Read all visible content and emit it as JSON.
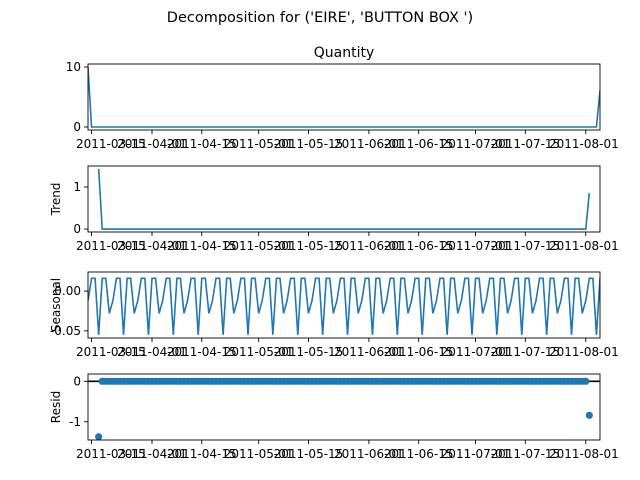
{
  "figure": {
    "suptitle": "Decomposition for ('EIRE', 'BUTTON BOX ')"
  },
  "colors": {
    "line": "#1f77b4",
    "axis": "#000000",
    "background": "#ffffff"
  },
  "chart_data": [
    {
      "type": "line",
      "title": "Quantity",
      "ylabel": "",
      "xlim": [
        "2011-03-14",
        "2011-08-05"
      ],
      "ylim": [
        -0.5,
        10.5
      ],
      "yticks": [
        "0",
        "10"
      ],
      "ytick_values": [
        0,
        10
      ],
      "xtick_labels": [
        "2011-03-15",
        "2011-04-01",
        "2011-04-15",
        "2011-05-01",
        "2011-05-15",
        "2011-06-01",
        "2011-06-15",
        "2011-07-01",
        "2011-07-15",
        "2011-08-01"
      ],
      "xtick_values": [
        "2011-03-15",
        "2011-04-01",
        "2011-04-15",
        "2011-05-01",
        "2011-05-15",
        "2011-06-01",
        "2011-06-15",
        "2011-07-01",
        "2011-07-15",
        "2011-08-01"
      ],
      "series": [
        {
          "x": [
            "2011-03-14",
            "2011-03-15",
            "2011-08-03",
            "2011-08-04",
            "2011-08-05"
          ],
          "y": [
            10,
            0,
            0,
            0,
            6
          ]
        }
      ]
    },
    {
      "type": "line",
      "title": "",
      "ylabel": "Trend",
      "xlim": [
        "2011-03-14",
        "2011-08-05"
      ],
      "ylim": [
        -0.07,
        1.5
      ],
      "yticks": [
        "0",
        "1"
      ],
      "ytick_values": [
        0,
        1
      ],
      "xtick_labels": [
        "2011-03-15",
        "2011-04-01",
        "2011-04-15",
        "2011-05-01",
        "2011-05-15",
        "2011-06-01",
        "2011-06-15",
        "2011-07-01",
        "2011-07-15",
        "2011-08-01"
      ],
      "xtick_values": [
        "2011-03-15",
        "2011-04-01",
        "2011-04-15",
        "2011-05-01",
        "2011-05-15",
        "2011-06-01",
        "2011-06-15",
        "2011-07-01",
        "2011-07-15",
        "2011-08-01"
      ],
      "series": [
        {
          "x": [
            "2011-03-17",
            "2011-03-18",
            "2011-08-01",
            "2011-08-02"
          ],
          "y": [
            1.43,
            0,
            0,
            0.86
          ]
        }
      ]
    },
    {
      "type": "line",
      "title": "",
      "ylabel": "Seasonal",
      "xlim": [
        "2011-03-14",
        "2011-08-05"
      ],
      "ylim": [
        -0.059,
        0.024
      ],
      "yticks": [
        "0.00",
        "-0.05"
      ],
      "ytick_values": [
        0,
        -0.05
      ],
      "xtick_labels": [
        "2011-03-15",
        "2011-04-01",
        "2011-04-15",
        "2011-05-01",
        "2011-05-15",
        "2011-06-01",
        "2011-06-15",
        "2011-07-01",
        "2011-07-15",
        "2011-08-01"
      ],
      "xtick_values": [
        "2011-03-15",
        "2011-04-01",
        "2011-04-15",
        "2011-05-01",
        "2011-05-15",
        "2011-06-01",
        "2011-06-15",
        "2011-07-01",
        "2011-07-15",
        "2011-08-01"
      ],
      "period_days": 7,
      "weekly_pattern": [
        -0.012,
        0.016,
        0.016,
        -0.055,
        0.016,
        0.016,
        -0.028
      ]
    },
    {
      "type": "scatter",
      "title": "",
      "ylabel": "Resid",
      "xlim": [
        "2011-03-14",
        "2011-08-05"
      ],
      "ylim": [
        -1.45,
        0.18
      ],
      "yticks": [
        "0",
        "-1"
      ],
      "ytick_values": [
        0,
        -1
      ],
      "xtick_labels": [
        "2011-03-15",
        "2011-04-01",
        "2011-04-15",
        "2011-05-01",
        "2011-05-15",
        "2011-06-01",
        "2011-06-15",
        "2011-07-01",
        "2011-07-15",
        "2011-08-01"
      ],
      "xtick_values": [
        "2011-03-15",
        "2011-04-01",
        "2011-04-15",
        "2011-05-01",
        "2011-05-15",
        "2011-06-01",
        "2011-06-15",
        "2011-07-01",
        "2011-07-15",
        "2011-08-01"
      ],
      "zero_line": 0,
      "points": [
        {
          "x": "2011-03-17",
          "y": -1.37
        },
        {
          "x": "2011-08-02",
          "y": -0.84
        }
      ],
      "zero_points_from": "2011-03-18",
      "zero_points_to": "2011-08-01"
    }
  ]
}
